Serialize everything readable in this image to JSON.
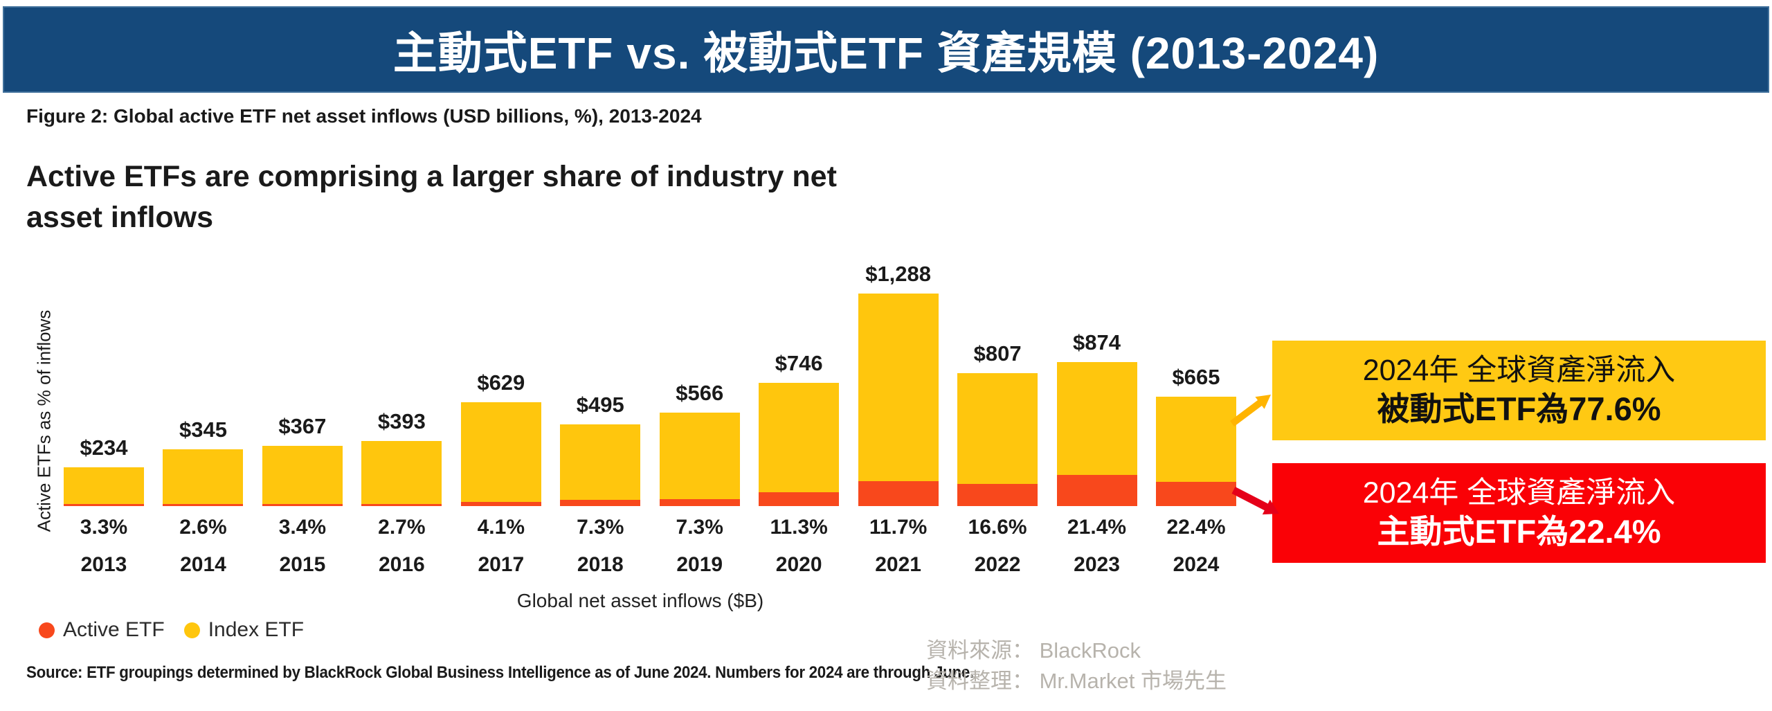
{
  "header": {
    "title": "主動式ETF vs. 被動式ETF 資產規模 (2013-2024)",
    "bg_color": "#15497B",
    "border_color": "#41719C"
  },
  "figure": {
    "caption": "Figure 2: Global active ETF net asset inflows (USD billions, %), 2013-2024",
    "headline_line1": "Active ETFs are comprising a larger share of industry net",
    "headline_line2": "asset inflows",
    "source_note": "Source: ETF groupings determined by BlackRock Global Business Intelligence as of June 2024. Numbers for 2024 are through June."
  },
  "chart_data": {
    "type": "bar",
    "stacked": true,
    "title": "Active ETFs are comprising a larger share of industry net asset inflows",
    "xlabel": "Global net asset inflows ($B)",
    "ylabel": "Active ETFs as % of inflows",
    "categories": [
      "2013",
      "2014",
      "2015",
      "2016",
      "2017",
      "2018",
      "2019",
      "2020",
      "2021",
      "2022",
      "2023",
      "2024"
    ],
    "totals_usd_b": [
      234,
      345,
      367,
      393,
      629,
      495,
      566,
      746,
      1288,
      807,
      874,
      665
    ],
    "total_labels": [
      "$234",
      "$345",
      "$367",
      "$393",
      "$629",
      "$495",
      "$566",
      "$746",
      "$1,288",
      "$807",
      "$874",
      "$665"
    ],
    "active_share_pct": [
      3.3,
      2.6,
      3.4,
      2.7,
      4.1,
      7.3,
      7.3,
      11.3,
      11.7,
      16.6,
      21.4,
      22.4
    ],
    "active_share_labels": [
      "3.3%",
      "2.6%",
      "3.4%",
      "2.7%",
      "4.1%",
      "7.3%",
      "7.3%",
      "11.3%",
      "11.7%",
      "16.6%",
      "21.4%",
      "22.4%"
    ],
    "series": [
      {
        "name": "Active ETF",
        "color": "#F8481C"
      },
      {
        "name": "Index ETF",
        "color": "#FFC60D"
      }
    ],
    "legend_position": "bottom-left",
    "gridlines": false,
    "ylim_usd_b": [
      0,
      1345
    ]
  },
  "annotations": {
    "passive_box": {
      "line1": "2024年 全球資產淨流入",
      "line2": "被動式ETF為77.6%",
      "bg": "#FFC913",
      "text_color": "#111111",
      "arrow_color": "#FFB400"
    },
    "active_box": {
      "line1": "2024年 全球資產淨流入",
      "line2": "主動式ETF為22.4%",
      "bg": "#FA0106",
      "text_color": "#FFFFFF",
      "arrow_color": "#E50019"
    }
  },
  "credits": {
    "source": "資料來源： BlackRock",
    "editor": "資料整理： Mr.Market 市場先生",
    "text_color": "#B7B3AC"
  }
}
